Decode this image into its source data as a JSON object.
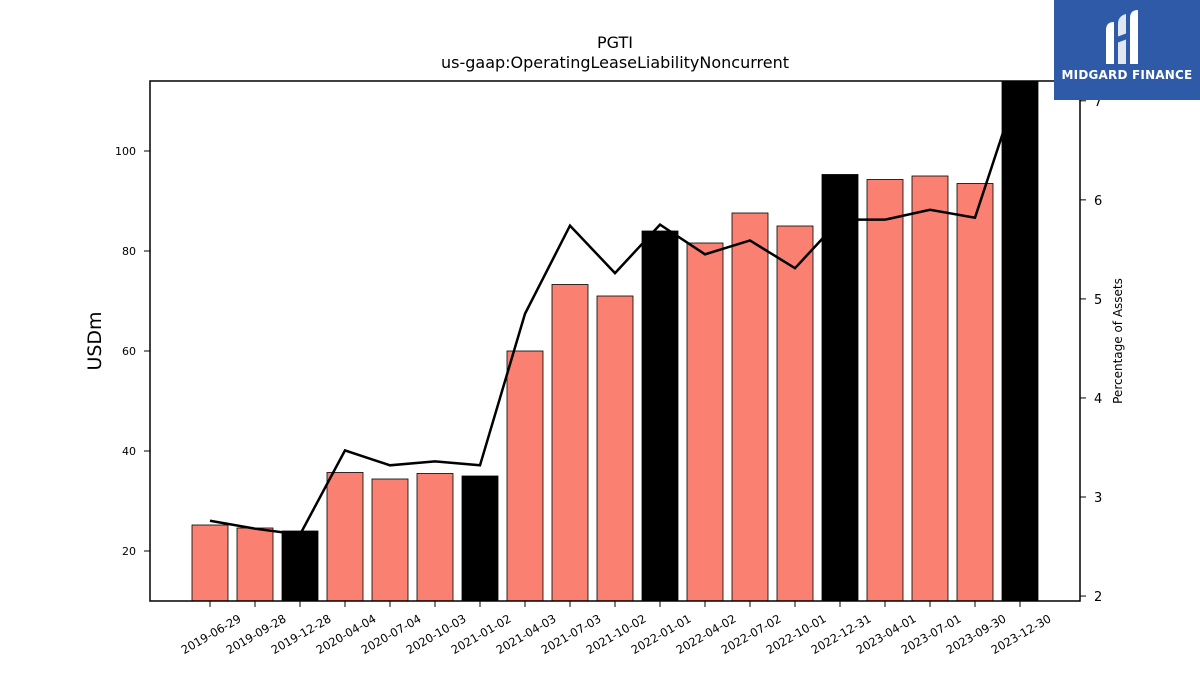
{
  "chart_data": {
    "type": "bar",
    "title": "PGTI",
    "subtitle": "us-gaap:OperatingLeaseLiabilityNoncurrent",
    "ylabel": "USDm",
    "y2label": "Percentage of Assets",
    "ylim": [
      10,
      114
    ],
    "y2lim": [
      1.95,
      7.2
    ],
    "yticks": [
      20,
      40,
      60,
      80,
      100
    ],
    "y2ticks": [
      2,
      3,
      4,
      5,
      6,
      7
    ],
    "categories": [
      "2019-06-29",
      "2019-09-28",
      "2019-12-28",
      "2020-04-04",
      "2020-07-04",
      "2020-10-03",
      "2021-01-02",
      "2021-04-03",
      "2021-07-03",
      "2021-10-02",
      "2022-01-01",
      "2022-04-02",
      "2022-07-02",
      "2022-10-01",
      "2022-12-31",
      "2023-04-01",
      "2023-07-01",
      "2023-09-30",
      "2023-12-30"
    ],
    "series": [
      {
        "values": [
          25.2,
          24.6,
          24.0,
          35.7,
          34.4,
          35.5,
          35.0,
          60.0,
          73.3,
          71.0,
          84.0,
          81.6,
          87.6,
          85.0,
          95.3,
          94.3,
          95.0,
          93.5,
          116.0
        ],
        "bar_colors": [
          "#fa8072",
          "#fa8072",
          "#000000",
          "#fa8072",
          "#fa8072",
          "#fa8072",
          "#000000",
          "#fa8072",
          "#fa8072",
          "#fa8072",
          "#000000",
          "#fa8072",
          "#fa8072",
          "#fa8072",
          "#000000",
          "#fa8072",
          "#fa8072",
          "#fa8072",
          "#000000"
        ]
      },
      {
        "axis": "right",
        "values": [
          2.76,
          2.68,
          2.62,
          3.47,
          3.32,
          3.36,
          3.32,
          4.85,
          5.74,
          5.26,
          5.75,
          5.45,
          5.59,
          5.31,
          5.8,
          5.8,
          5.9,
          5.82,
          7.2
        ]
      }
    ]
  },
  "logo": {
    "text": "MIDGARD FINANCE"
  },
  "colors": {
    "accent": "#fa8072",
    "highlight": "#000000",
    "logo_bg": "#2f5aa8"
  }
}
